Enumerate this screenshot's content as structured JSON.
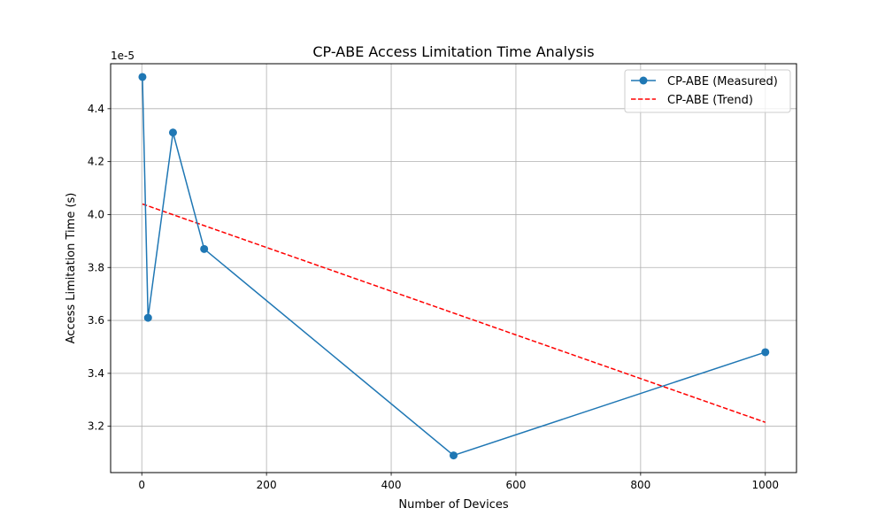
{
  "chart_data": {
    "type": "line",
    "title": "CP-ABE Access Limitation Time Analysis",
    "xlabel": "Number of Devices",
    "ylabel": "Access Limitation Time (s)",
    "y_offset_label": "1e-5",
    "xlim": [
      -50,
      1050
    ],
    "ylim": [
      3.025,
      4.57
    ],
    "x_ticks": [
      0,
      200,
      400,
      600,
      800,
      1000
    ],
    "y_ticks": [
      3.2,
      3.4,
      3.6,
      3.8,
      4.0,
      4.2,
      4.4
    ],
    "grid": true,
    "legend_position": "top-right",
    "series": [
      {
        "name": "CP-ABE (Measured)",
        "style": "solid-line-with-circle-markers",
        "color": "#1f77b4",
        "x": [
          1,
          10,
          50,
          100,
          500,
          1000
        ],
        "y": [
          4.52,
          3.61,
          4.31,
          3.87,
          3.09,
          3.48
        ]
      },
      {
        "name": "CP-ABE (Trend)",
        "style": "dashed-line",
        "color": "#ff0000",
        "x": [
          1,
          1000
        ],
        "y": [
          4.04,
          3.215
        ]
      }
    ]
  }
}
